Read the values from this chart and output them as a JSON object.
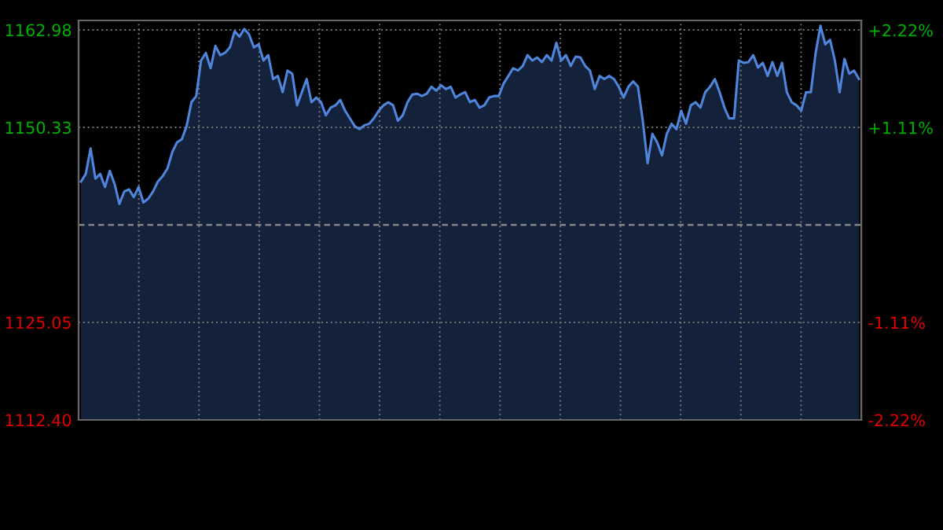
{
  "chart_data": {
    "type": "area",
    "categories": [
      null,
      null,
      null,
      null,
      null,
      null,
      null,
      null,
      null,
      null,
      null,
      null,
      null,
      null,
      null,
      null,
      null,
      null,
      null,
      null,
      null,
      null,
      null,
      null,
      null,
      null,
      null,
      null,
      null,
      null,
      null,
      null,
      null,
      null,
      null,
      null,
      null,
      null,
      null,
      null,
      null,
      null,
      null,
      null,
      null,
      null,
      null,
      null,
      null,
      null,
      null,
      null,
      null,
      null,
      null,
      null,
      null,
      null,
      null,
      null,
      null,
      null,
      null,
      null,
      null,
      null,
      null,
      null,
      null,
      null,
      null,
      null,
      null,
      null,
      null,
      null,
      null,
      null,
      null,
      null,
      null,
      null,
      null,
      null,
      null,
      null,
      null,
      null,
      null,
      null,
      null,
      null,
      null,
      null,
      null,
      null,
      null,
      null,
      null,
      null,
      null,
      null,
      null,
      null,
      null,
      null,
      null,
      null,
      null,
      null,
      null,
      null,
      null,
      null,
      null,
      null,
      null,
      null,
      null,
      null,
      null,
      null,
      null,
      null,
      null,
      null,
      null,
      null,
      null,
      null,
      null,
      null,
      null,
      null,
      null,
      null,
      null,
      null,
      null,
      null,
      null,
      null,
      null,
      null,
      null,
      null,
      null,
      null,
      null,
      null,
      null,
      null,
      null,
      null,
      null,
      null,
      null,
      null,
      null,
      null,
      null,
      null,
      null
    ],
    "series": [
      {
        "color": "#4f86db",
        "values": [
          1143.3,
          1144.3,
          1147.6,
          1143.7,
          1144.3,
          1142.6,
          1144.7,
          1143.0,
          1140.4,
          1142.0,
          1142.3,
          1141.3,
          1142.6,
          1140.6,
          1141.1,
          1142.0,
          1143.3,
          1144.0,
          1145.0,
          1147.1,
          1148.4,
          1148.8,
          1150.5,
          1153.6,
          1154.4,
          1159.0,
          1160.0,
          1158.0,
          1160.9,
          1159.7,
          1160.0,
          1160.7,
          1162.8,
          1162.1,
          1163.1,
          1162.4,
          1160.7,
          1161.1,
          1159.0,
          1159.7,
          1156.6,
          1157.0,
          1154.9,
          1157.7,
          1157.3,
          1153.2,
          1154.9,
          1156.6,
          1153.6,
          1154.2,
          1153.6,
          1151.9,
          1152.9,
          1153.2,
          1153.9,
          1152.5,
          1151.5,
          1150.5,
          1150.1,
          1150.6,
          1150.8,
          1151.5,
          1152.5,
          1153.2,
          1153.6,
          1153.2,
          1151.2,
          1151.9,
          1153.6,
          1154.6,
          1154.7,
          1154.4,
          1154.7,
          1155.6,
          1155.1,
          1155.8,
          1155.3,
          1155.6,
          1154.2,
          1154.6,
          1154.9,
          1153.6,
          1153.9,
          1152.9,
          1153.2,
          1154.2,
          1154.4,
          1154.4,
          1156.0,
          1157.0,
          1158.0,
          1157.7,
          1158.3,
          1159.7,
          1159.0,
          1159.4,
          1158.8,
          1159.7,
          1159.0,
          1161.3,
          1159.0,
          1159.7,
          1158.3,
          1159.5,
          1159.4,
          1158.3,
          1157.7,
          1155.3,
          1157.0,
          1156.6,
          1157.0,
          1156.6,
          1155.6,
          1154.2,
          1155.6,
          1156.3,
          1155.6,
          1151.2,
          1145.7,
          1149.5,
          1148.4,
          1146.7,
          1149.5,
          1150.8,
          1150.1,
          1152.5,
          1150.8,
          1153.2,
          1153.6,
          1152.9,
          1154.9,
          1155.6,
          1156.6,
          1154.9,
          1152.9,
          1151.5,
          1151.5,
          1159.0,
          1158.7,
          1158.8,
          1159.7,
          1158.1,
          1158.7,
          1157.0,
          1158.8,
          1157.0,
          1158.7,
          1154.9,
          1153.6,
          1153.2,
          1152.5,
          1154.9,
          1154.9,
          1160.0,
          1163.5,
          1161.1,
          1161.7,
          1159.0,
          1154.9,
          1159.2,
          1157.3,
          1157.7,
          1156.6
        ]
      }
    ],
    "ylim": [
      1112.4,
      1164.2
    ],
    "yticks": [
      {
        "value": 1112.4,
        "label": "1112.40"
      },
      {
        "value": 1125.05,
        "label": "1125.05"
      },
      {
        "value": 1150.33,
        "label": "1150.33"
      },
      {
        "value": 1162.98,
        "label": "1162.98"
      }
    ],
    "y2lim": [
      -2.22,
      2.33
    ],
    "y2ticks": [
      {
        "value": -2.22,
        "label": "-2.22%"
      },
      {
        "value": -1.11,
        "label": "-1.11%"
      },
      {
        "value": 1.11,
        "label": "+1.11%"
      },
      {
        "value": 2.22,
        "label": "+2.22%"
      }
    ],
    "ref_lines": [
      {
        "axis": "y",
        "value": 1137.69,
        "line_style": "dashed",
        "color": "#888888"
      }
    ],
    "grid": true,
    "line_style": "solid"
  }
}
